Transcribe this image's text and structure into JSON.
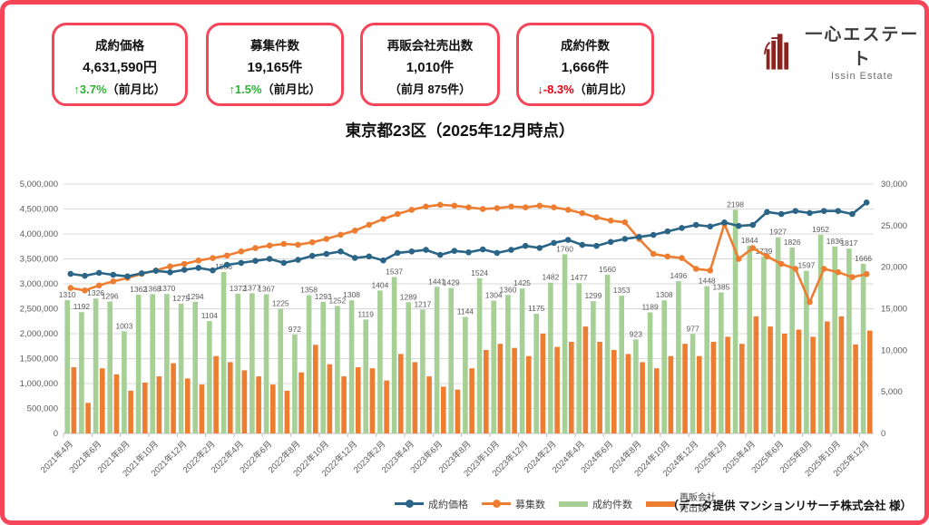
{
  "page": {
    "title": "東京都23区（2025年12月時点）",
    "footer": "（データ提供 マンションリサーチ株式会社 様）"
  },
  "brand": {
    "name": "一心エステート",
    "name_en": "Issin Estate",
    "logo_color": "#8e221d",
    "accent_red": "#f64458"
  },
  "cards": [
    {
      "title": "成約価格",
      "value": "4,631,590円",
      "change": "↑3.7%",
      "suffix": "（前月比）",
      "trend": "up",
      "trend_color": "#2eb135"
    },
    {
      "title": "募集件数",
      "value": "19,165件",
      "change": "↑1.5%",
      "suffix": "（前月比）",
      "trend": "up",
      "trend_color": "#2eb135"
    },
    {
      "title": "再販会社売出数",
      "value": "1,010件",
      "change": "",
      "suffix": "（前月 875件）",
      "trend": "none",
      "trend_color": "#111111"
    },
    {
      "title": "成約件数",
      "value": "1,666件",
      "change": "↓-8.3%",
      "suffix": "（前月比）",
      "trend": "down",
      "trend_color": "#e60012"
    }
  ],
  "legend": {
    "items": [
      {
        "label": "成約価格",
        "label2": "",
        "type": "line",
        "color": "#2a6486"
      },
      {
        "label": "募集数",
        "label2": "",
        "type": "line",
        "color": "#ed7d31"
      },
      {
        "label": "成約件数",
        "label2": "",
        "type": "bar",
        "color": "#a6d096"
      },
      {
        "label": "再販会社",
        "label2": "売出数",
        "type": "bar",
        "color": "#ed7d31"
      }
    ]
  },
  "chart_data": {
    "type": "combo",
    "title": "東京都23区（2025年12月時点）",
    "x": [
      "2021年4月",
      "2021年5月",
      "2021年6月",
      "2021年7月",
      "2021年8月",
      "2021年9月",
      "2021年10月",
      "2021年11月",
      "2021年12月",
      "2022年1月",
      "2022年2月",
      "2022年3月",
      "2022年4月",
      "2022年5月",
      "2022年6月",
      "2022年7月",
      "2022年8月",
      "2022年9月",
      "2022年10月",
      "2022年11月",
      "2022年12月",
      "2023年1月",
      "2023年2月",
      "2023年3月",
      "2023年4月",
      "2023年5月",
      "2023年6月",
      "2023年7月",
      "2023年8月",
      "2023年9月",
      "2023年10月",
      "2023年11月",
      "2023年12月",
      "2024年1月",
      "2024年2月",
      "2024年3月",
      "2024年4月",
      "2024年5月",
      "2024年6月",
      "2024年7月",
      "2024年8月",
      "2024年9月",
      "2024年10月",
      "2024年11月",
      "2024年12月",
      "2025年1月",
      "2025年2月",
      "2025年3月",
      "2025年4月",
      "2025年5月",
      "2025年6月",
      "2025年7月",
      "2025年8月",
      "2025年9月",
      "2025年10月",
      "2025年11月",
      "2025年12月"
    ],
    "x_tick_every": 2,
    "left_axis": {
      "min": 0,
      "max": 5000000,
      "step": 500000,
      "applies_to": "成約価格"
    },
    "right_axis": {
      "min": 0,
      "max": 30000,
      "step": 5000,
      "applies_to": "募集数"
    },
    "hidden_bar_axis_max": 2450,
    "grid": true,
    "legend_position": "bottom",
    "series": [
      {
        "name": "成約価格",
        "type": "line",
        "axis": "left",
        "color": "#2a6486",
        "values": [
          3200000,
          3160000,
          3220000,
          3180000,
          3150000,
          3210000,
          3260000,
          3230000,
          3280000,
          3320000,
          3270000,
          3380000,
          3420000,
          3460000,
          3500000,
          3420000,
          3480000,
          3560000,
          3600000,
          3650000,
          3520000,
          3550000,
          3470000,
          3620000,
          3650000,
          3680000,
          3580000,
          3660000,
          3630000,
          3690000,
          3620000,
          3680000,
          3760000,
          3720000,
          3820000,
          3880000,
          3780000,
          3760000,
          3840000,
          3900000,
          3940000,
          3980000,
          4050000,
          4120000,
          4180000,
          4150000,
          4230000,
          4160000,
          4180000,
          4440000,
          4400000,
          4460000,
          4420000,
          4460000,
          4460000,
          4400000,
          4631590
        ],
        "values_estimated": true,
        "last_value_exact": 4631590
      },
      {
        "name": "募集数",
        "type": "line",
        "axis": "right",
        "color": "#ed7d31",
        "values": [
          17500,
          17200,
          17800,
          18300,
          18700,
          19200,
          19600,
          20100,
          20400,
          20800,
          21100,
          21400,
          21900,
          22300,
          22600,
          22800,
          22700,
          23000,
          23400,
          23900,
          24400,
          25100,
          25800,
          26400,
          26900,
          27300,
          27500,
          27400,
          27200,
          27000,
          27100,
          27300,
          27200,
          27400,
          27200,
          26900,
          26500,
          26000,
          25600,
          25400,
          23400,
          21600,
          21300,
          21100,
          19800,
          19600,
          25200,
          21000,
          22300,
          21300,
          20400,
          19800,
          15800,
          19800,
          19400,
          18800,
          19165
        ],
        "values_estimated": true,
        "last_value_exact": 19165
      },
      {
        "name": "成約件数",
        "type": "bar",
        "axis": "hidden",
        "color": "#a6d096",
        "data_labels": true,
        "values": [
          1310,
          1192,
          1326,
          1296,
          1003,
          1362,
          1368,
          1370,
          1275,
          1294,
          1104,
          1586,
          1372,
          1377,
          1367,
          1225,
          972,
          1358,
          1293,
          1252,
          1308,
          1119,
          1404,
          1537,
          1289,
          1217,
          1441,
          1429,
          1144,
          1524,
          1304,
          1360,
          1425,
          1175,
          1482,
          1760,
          1477,
          1299,
          1560,
          1353,
          923,
          1189,
          1308,
          1496,
          977,
          1448,
          1385,
          2198,
          1844,
          1739,
          1927,
          1826,
          1597,
          1952,
          1836,
          1817,
          1666
        ]
      },
      {
        "name": "再販会社売出数",
        "type": "bar",
        "axis": "hidden",
        "color": "#ed7d31",
        "data_labels": false,
        "values": [
          650,
          300,
          640,
          580,
          420,
          500,
          560,
          690,
          540,
          480,
          760,
          700,
          620,
          560,
          480,
          420,
          600,
          870,
          680,
          560,
          650,
          640,
          520,
          780,
          700,
          560,
          460,
          430,
          640,
          820,
          880,
          840,
          760,
          980,
          850,
          900,
          1050,
          900,
          820,
          780,
          700,
          640,
          760,
          880,
          760,
          900,
          950,
          880,
          1150,
          1050,
          980,
          1020,
          950,
          1100,
          1150,
          875,
          1010
        ],
        "values_estimated": true,
        "last_two_exact": [
          875,
          1010
        ]
      }
    ],
    "axis_label_color": "#595959",
    "grid_color": "#d9d9d9",
    "axis_line_color": "#bfbfbf",
    "bar_label_color": "#595959"
  }
}
